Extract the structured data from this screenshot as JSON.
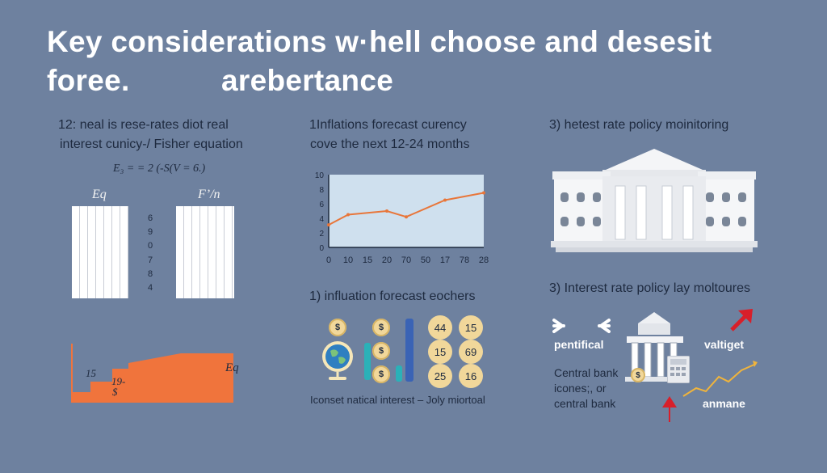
{
  "title": {
    "line1": "Key considerations w·hell choose and desesit",
    "line2a": "foree.",
    "line2b": "arebertance"
  },
  "panel1": {
    "heading1": "12: neal is rese-rates diot real",
    "heading2": "interest cunicy-/ Fisher equation",
    "formula": "E₃ = = 2 (-S(V = 6.)",
    "label_left": "Eq",
    "label_right": "F’/n",
    "mid_numbers": [
      "6",
      "9",
      "0",
      "7",
      "8",
      "4"
    ],
    "area_label_a": "15",
    "area_label_b": "19-",
    "area_label_dollar": "$",
    "area_label_eq": "Eq"
  },
  "panel2": {
    "heading1": "1Inflations forecast curency",
    "heading2": "cove the next 12-24 months",
    "chart_data": {
      "type": "line",
      "x_tick_labels": [
        "0",
        "10",
        "15",
        "20",
        "70",
        "50",
        "17",
        "78",
        "28"
      ],
      "y_tick_labels": [
        "10",
        "8",
        "6",
        "4",
        "2",
        "0"
      ],
      "ylim": [
        0,
        10
      ],
      "series": [
        {
          "points": [
            [
              0,
              3.1
            ],
            [
              1,
              4.5
            ],
            [
              3,
              5.0
            ],
            [
              4,
              4.2
            ],
            [
              6,
              6.5
            ],
            [
              8,
              7.5
            ]
          ]
        }
      ],
      "colors": {
        "line": "#e8763a",
        "plot_bg": "#cfe0ee"
      }
    }
  },
  "panel3": {
    "heading": "3) hetest rate policy moinitoring"
  },
  "panel4": {
    "heading": "1) influation forecast eochers",
    "coins_left": [
      "$",
      "$"
    ],
    "coins_mid": [
      "$",
      "$",
      "$"
    ],
    "numbers": [
      "44",
      "15",
      "15",
      "69",
      "25",
      "16"
    ],
    "caption": "Iconset natical interest – Joly miortoal"
  },
  "panel5": {
    "heading": "3) Interest rate policy lay moltoures",
    "label_left": "pentifical",
    "label_right": "valtiget",
    "text_line1": "Central bank",
    "text_line2": "icones;, or",
    "text_line3": "central bank",
    "label_bottom": "anmane",
    "coin_symbol": "$"
  },
  "colors": {
    "background": "#6e819f",
    "accent_orange": "#f0743c",
    "arrow_red": "#d81f2a",
    "teal": "#2ab1b8",
    "blue": "#3a63b5",
    "dark_text": "#1e2a3f"
  }
}
